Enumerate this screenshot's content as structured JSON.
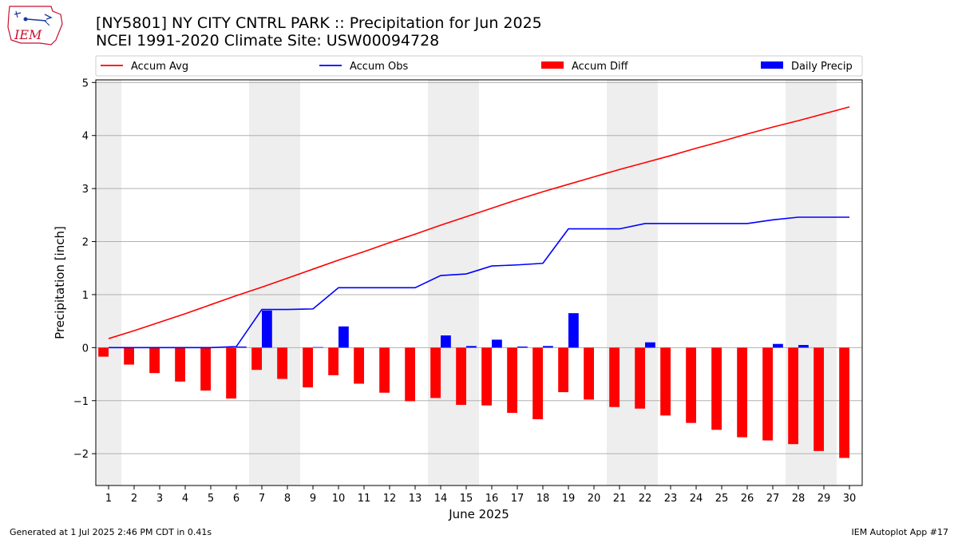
{
  "header": {
    "title_line1": "[NY5801] NY CITY CNTRL PARK :: Precipitation for Jun 2025",
    "title_line2": "NCEI 1991-2020 Climate Site: USW00094728"
  },
  "logo": {
    "text": "IEM",
    "color": "#c8102e"
  },
  "footer": {
    "left": "Generated at 1 Jul 2025 2:46 PM CDT in 0.41s",
    "right": "IEM Autoplot App #17"
  },
  "chart_data": {
    "type": "bar",
    "xlabel": "June 2025",
    "ylabel": "Precipitation [inch]",
    "ylim": [
      -2.6,
      5.05
    ],
    "xlim": [
      0.5,
      30.5
    ],
    "yticks": [
      -2,
      -1,
      0,
      1,
      2,
      3,
      4,
      5
    ],
    "ytick_labels": [
      "−2",
      "−1",
      "0",
      "1",
      "2",
      "3",
      "4",
      "5"
    ],
    "days": [
      1,
      2,
      3,
      4,
      5,
      6,
      7,
      8,
      9,
      10,
      11,
      12,
      13,
      14,
      15,
      16,
      17,
      18,
      19,
      20,
      21,
      22,
      23,
      24,
      25,
      26,
      27,
      28,
      29,
      30
    ],
    "weekend_shading": [
      [
        0.5,
        1.5
      ],
      [
        6.5,
        8.5
      ],
      [
        13.5,
        15.5
      ],
      [
        20.5,
        22.5
      ],
      [
        27.5,
        29.5
      ]
    ],
    "grid": true,
    "legend": {
      "placement": "top",
      "entries": [
        "Accum Avg",
        "Accum Obs",
        "Accum Diff",
        "Daily Precip"
      ]
    },
    "colors": {
      "accum_avg": "#ff0000",
      "accum_obs": "#0000ff",
      "accum_diff": "#ff0000",
      "daily_precip": "#0000ff",
      "shade": "#eeeeee",
      "grid": "#b0b0b0"
    },
    "series": [
      {
        "name": "Accum Avg",
        "kind": "line",
        "values": [
          0.17,
          0.32,
          0.48,
          0.64,
          0.81,
          0.98,
          1.14,
          1.31,
          1.48,
          1.65,
          1.81,
          1.98,
          2.14,
          2.31,
          2.47,
          2.63,
          2.79,
          2.94,
          3.08,
          3.22,
          3.36,
          3.49,
          3.62,
          3.76,
          3.89,
          4.03,
          4.16,
          4.28,
          4.41,
          4.54
        ]
      },
      {
        "name": "Accum Obs",
        "kind": "line",
        "values": [
          0.0,
          0.0,
          0.0,
          0.0,
          0.0,
          0.02,
          0.72,
          0.72,
          0.73,
          1.13,
          1.13,
          1.13,
          1.13,
          1.36,
          1.39,
          1.54,
          1.56,
          1.59,
          2.24,
          2.24,
          2.24,
          2.34,
          2.34,
          2.34,
          2.34,
          2.34,
          2.41,
          2.46,
          2.46,
          2.46
        ]
      },
      {
        "name": "Accum Diff",
        "kind": "bar",
        "values": [
          -0.17,
          -0.32,
          -0.48,
          -0.64,
          -0.81,
          -0.96,
          -0.42,
          -0.59,
          -0.75,
          -0.52,
          -0.68,
          -0.85,
          -1.01,
          -0.95,
          -1.08,
          -1.09,
          -1.23,
          -1.35,
          -0.84,
          -0.98,
          -1.12,
          -1.15,
          -1.28,
          -1.42,
          -1.55,
          -1.69,
          -1.75,
          -1.82,
          -1.95,
          -2.08
        ]
      },
      {
        "name": "Daily Precip",
        "kind": "bar",
        "values": [
          0.0,
          0.0,
          0.0,
          0.0,
          0.0,
          0.02,
          0.7,
          0.0,
          0.01,
          0.4,
          0.0,
          0.0,
          0.0,
          0.23,
          0.03,
          0.15,
          0.02,
          0.03,
          0.65,
          0.0,
          0.0,
          0.1,
          0.0,
          0.0,
          0.0,
          0.0,
          0.07,
          0.05,
          0.0,
          0.0
        ]
      }
    ]
  }
}
